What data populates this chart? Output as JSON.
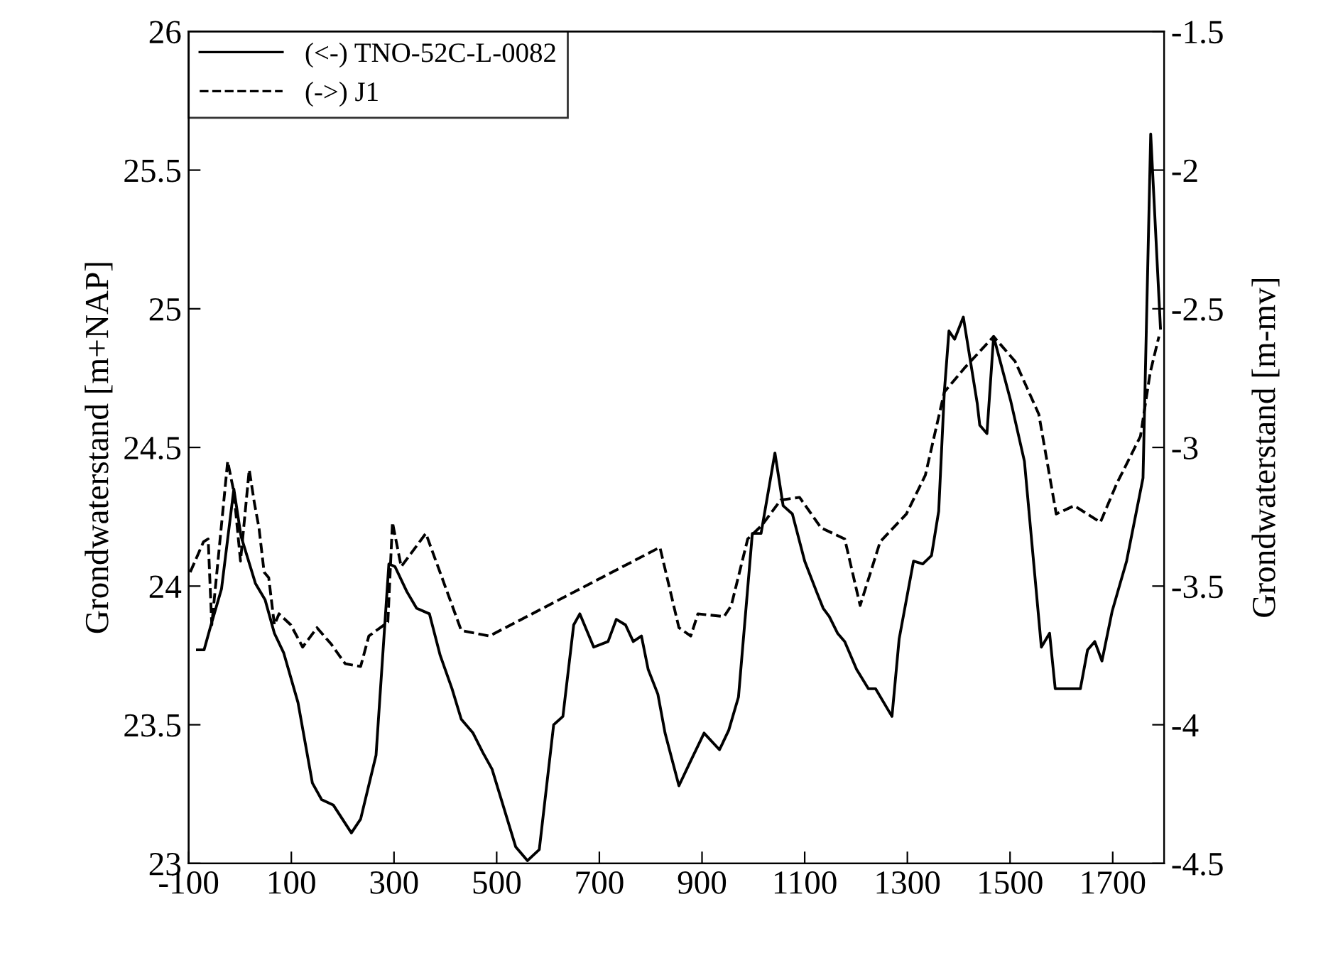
{
  "chart_data": {
    "type": "line",
    "xlabel": null,
    "ylabel": "Grondwaterstand [m+NAP]",
    "y2label": "Grondwaterstand [m-mv]",
    "xlim": [
      -100,
      1800
    ],
    "xticks": [
      {
        "value": -100,
        "label": "-100"
      },
      100,
      300,
      500,
      700,
      900,
      1100,
      1300,
      1500,
      1700
    ],
    "ylim": [
      23,
      26
    ],
    "yticks": [
      23,
      23.5,
      24,
      24.5,
      25,
      25.5,
      26
    ],
    "y2lim": [
      -4.5,
      -1.5
    ],
    "y2ticks": [
      {
        "value": -4.5,
        "label": "-4.5"
      },
      {
        "value": -4,
        "label": "-4"
      },
      {
        "value": -3.5,
        "label": "-3.5"
      },
      {
        "value": -3,
        "label": "-3"
      },
      {
        "value": -2.5,
        "label": "-2.5"
      },
      {
        "value": -2,
        "label": "-2"
      },
      {
        "value": -1.5,
        "label": "-1.5"
      }
    ],
    "grid": false,
    "legend": "top left",
    "marker": "none",
    "series": [
      {
        "name": "(<-) TNO-52C-L-0082",
        "color": "#000000",
        "line_style": "solid",
        "axis": "y",
        "x": [
          -83,
          -70,
          -58,
          -36,
          -12,
          2,
          30,
          49,
          67,
          85,
          113,
          141,
          159,
          182,
          217,
          235,
          265,
          290,
          302,
          325,
          344,
          369,
          390,
          413,
          431,
          454,
          473,
          491,
          537,
          560,
          583,
          611,
          629,
          650,
          662,
          689,
          717,
          733,
          751,
          766,
          782,
          795,
          814,
          828,
          855,
          878,
          904,
          934,
          952,
          971,
          998,
          1015,
          1042,
          1058,
          1076,
          1100,
          1123,
          1136,
          1148,
          1164,
          1178,
          1201,
          1224,
          1238,
          1270,
          1284,
          1312,
          1330,
          1347,
          1361,
          1372,
          1381,
          1392,
          1409,
          1436,
          1441,
          1455,
          1468,
          1501,
          1528,
          1561,
          1577,
          1588,
          1637,
          1651,
          1665,
          1679,
          1699,
          1713,
          1727,
          1759,
          1774,
          1793
        ],
        "values": [
          23.77,
          23.77,
          23.85,
          23.99,
          24.35,
          24.18,
          24.01,
          23.95,
          23.83,
          23.76,
          23.58,
          23.29,
          23.23,
          23.21,
          23.11,
          23.16,
          23.39,
          24.08,
          24.07,
          23.98,
          23.92,
          23.9,
          23.75,
          23.63,
          23.52,
          23.47,
          23.4,
          23.34,
          23.06,
          23.01,
          23.05,
          23.5,
          23.53,
          23.86,
          23.9,
          23.78,
          23.8,
          23.88,
          23.86,
          23.8,
          23.82,
          23.7,
          23.61,
          23.47,
          23.28,
          23.37,
          23.47,
          23.41,
          23.48,
          23.6,
          24.19,
          24.19,
          24.48,
          24.29,
          24.26,
          24.09,
          23.98,
          23.92,
          23.89,
          23.83,
          23.8,
          23.7,
          23.63,
          23.63,
          23.53,
          23.81,
          24.09,
          24.08,
          24.11,
          24.27,
          24.7,
          24.92,
          24.89,
          24.97,
          24.66,
          24.58,
          24.55,
          24.9,
          24.67,
          24.45,
          23.78,
          23.83,
          23.63,
          23.63,
          23.77,
          23.8,
          23.73,
          23.91,
          24.0,
          24.09,
          24.39,
          25.63,
          24.93
        ]
      },
      {
        "name": "(->) J1",
        "color": "#000000",
        "line_style": "dashed",
        "axis": "y2",
        "x": [
          -97,
          -71,
          -62,
          -55,
          -24,
          -12,
          1,
          18,
          28,
          37,
          47,
          56,
          67,
          76,
          99,
          122,
          150,
          178,
          205,
          235,
          251,
          288,
          297,
          314,
          362,
          431,
          486,
          818,
          855,
          878,
          892,
          943,
          957,
          989,
          1017,
          1053,
          1090,
          1132,
          1178,
          1208,
          1247,
          1298,
          1335,
          1372,
          1413,
          1468,
          1510,
          1556,
          1590,
          1625,
          1676,
          1708,
          1754,
          1773,
          1790
        ],
        "values": [
          -3.45,
          -3.34,
          -3.33,
          -3.64,
          -3.05,
          -3.16,
          -3.41,
          -3.08,
          -3.2,
          -3.29,
          -3.45,
          -3.47,
          -3.64,
          -3.6,
          -3.64,
          -3.72,
          -3.65,
          -3.71,
          -3.78,
          -3.79,
          -3.68,
          -3.63,
          -3.27,
          -3.43,
          -3.31,
          -3.66,
          -3.68,
          -3.36,
          -3.65,
          -3.68,
          -3.6,
          -3.61,
          -3.57,
          -3.33,
          -3.28,
          -3.19,
          -3.18,
          -3.29,
          -3.33,
          -3.57,
          -3.34,
          -3.24,
          -3.1,
          -2.8,
          -2.71,
          -2.6,
          -2.69,
          -2.88,
          -3.24,
          -3.21,
          -3.27,
          -3.13,
          -2.96,
          -2.73,
          -2.6
        ]
      }
    ]
  }
}
